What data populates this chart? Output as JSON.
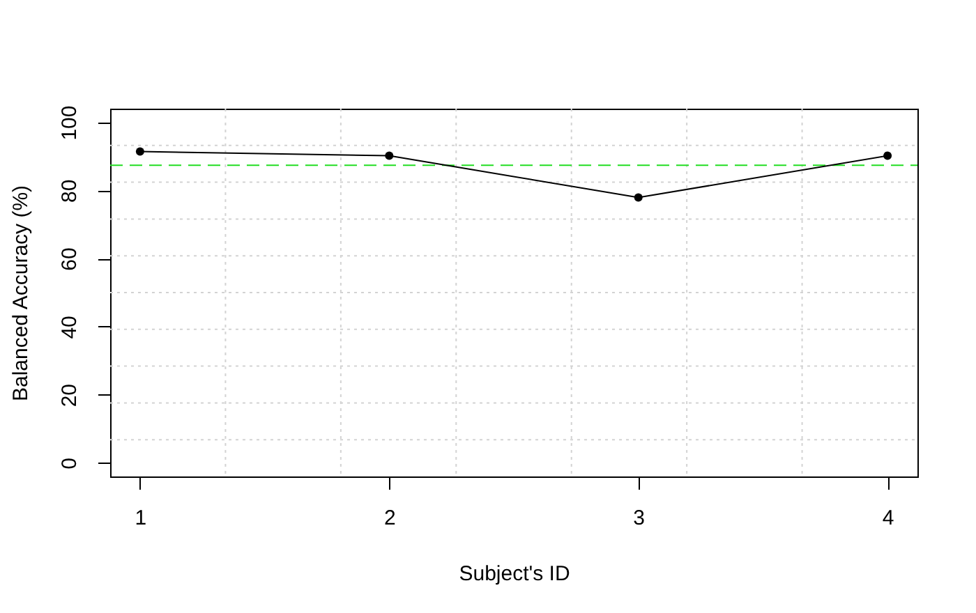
{
  "chart_data": {
    "type": "line",
    "xlabel": "Subject's ID",
    "ylabel": "Balanced Accuracy (%)",
    "x": [
      1,
      2,
      3,
      4
    ],
    "series": [
      {
        "color": "#000000",
        "values": [
          91.4,
          90.2,
          77.9,
          90.2
        ]
      }
    ],
    "xlim": [
      0.88,
      4.12
    ],
    "xticks": [
      1,
      2,
      3,
      4
    ],
    "ylim": [
      -4,
      104
    ],
    "yticks": [
      0,
      20,
      40,
      60,
      80,
      100
    ],
    "grid": true,
    "marker": "circle",
    "line_style": "solid",
    "ref_lines": [
      {
        "axis": "y",
        "value": 87.4,
        "color": "#22dd22",
        "line_style": "dashed"
      }
    ]
  }
}
